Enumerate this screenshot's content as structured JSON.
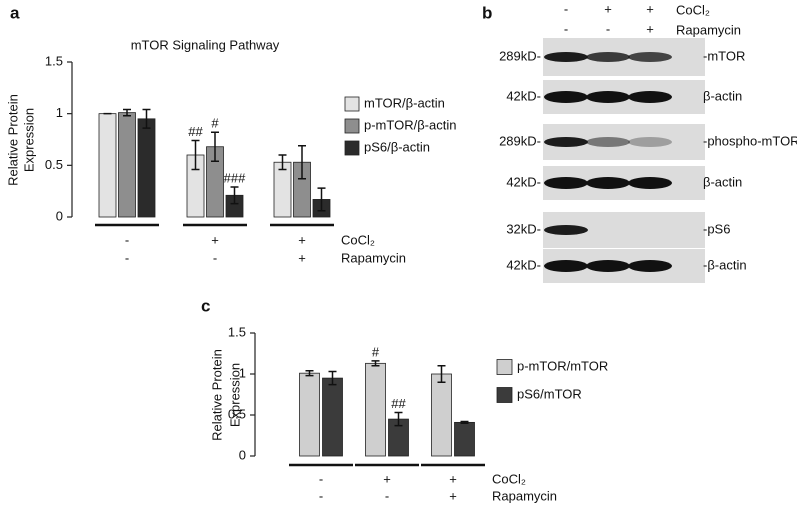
{
  "chart_data": [
    {
      "type": "bar",
      "panel": "a",
      "title": "mTOR Signaling Pathway",
      "ylabel": [
        "Relative Protein",
        "Expression"
      ],
      "categories": [
        null,
        null,
        null
      ],
      "conditions": [
        {
          "name": "CoCl₂",
          "marks": [
            "-",
            "+",
            "+"
          ]
        },
        {
          "name": "Rapamycin",
          "marks": [
            "-",
            "-",
            "+"
          ]
        }
      ],
      "ylim": [
        0,
        1.5
      ],
      "yticks": [
        0,
        0.5,
        1,
        1.5
      ],
      "series": [
        {
          "name": "mTOR/β-actin",
          "color": "#e3e3e3",
          "values": [
            1.0,
            0.6,
            0.53
          ],
          "errors": [
            0,
            0.14,
            0.07
          ],
          "significance": [
            null,
            "##",
            null
          ]
        },
        {
          "name": "p-mTOR/β-actin",
          "color": "#8e8e8e",
          "values": [
            1.01,
            0.68,
            0.53
          ],
          "errors": [
            0.03,
            0.14,
            0.16
          ],
          "significance": [
            null,
            "#",
            null
          ]
        },
        {
          "name": "pS6/β-actin",
          "color": "#2b2b2b",
          "values": [
            0.95,
            0.21,
            0.17
          ],
          "errors": [
            0.09,
            0.08,
            0.11
          ],
          "significance": [
            null,
            "###",
            null
          ]
        }
      ]
    },
    {
      "type": "bar",
      "panel": "c",
      "ylabel": [
        "Relative Protein",
        "Expression"
      ],
      "categories": [
        null,
        null,
        null
      ],
      "conditions": [
        {
          "name": "CoCl₂",
          "marks": [
            "-",
            "+",
            "+"
          ]
        },
        {
          "name": "Rapamycin",
          "marks": [
            "-",
            "-",
            "+"
          ]
        }
      ],
      "ylim": [
        0,
        1.5
      ],
      "yticks": [
        0,
        0.5,
        1,
        1.5
      ],
      "series": [
        {
          "name": "p-mTOR/mTOR",
          "color": "#cfcfcf",
          "values": [
            1.01,
            1.13,
            1.0
          ],
          "errors": [
            0.03,
            0.03,
            0.1
          ],
          "significance": [
            null,
            "#",
            null
          ]
        },
        {
          "name": "pS6/mTOR",
          "color": "#3b3b3b",
          "values": [
            0.95,
            0.45,
            0.41
          ],
          "errors": [
            0.08,
            0.08,
            0.01
          ],
          "significance": [
            null,
            "##",
            null
          ]
        }
      ]
    }
  ],
  "blot": {
    "panel": "b",
    "conditions": [
      {
        "name": "CoCl₂",
        "marks": [
          "-",
          "+",
          "+"
        ]
      },
      {
        "name": "Rapamycin",
        "marks": [
          "-",
          "-",
          "+"
        ]
      }
    ],
    "rows": [
      {
        "size": "289kD-",
        "label": "-mTOR"
      },
      {
        "size": "42kD-",
        "label": "β-actin"
      },
      {
        "size": "289kD-",
        "label": "-phospho-mTOR"
      },
      {
        "size": "42kD-",
        "label": "β-actin"
      },
      {
        "size": "32kD-",
        "label": "-pS6"
      },
      {
        "size": "42kD-",
        "label": "-β-actin"
      }
    ]
  }
}
